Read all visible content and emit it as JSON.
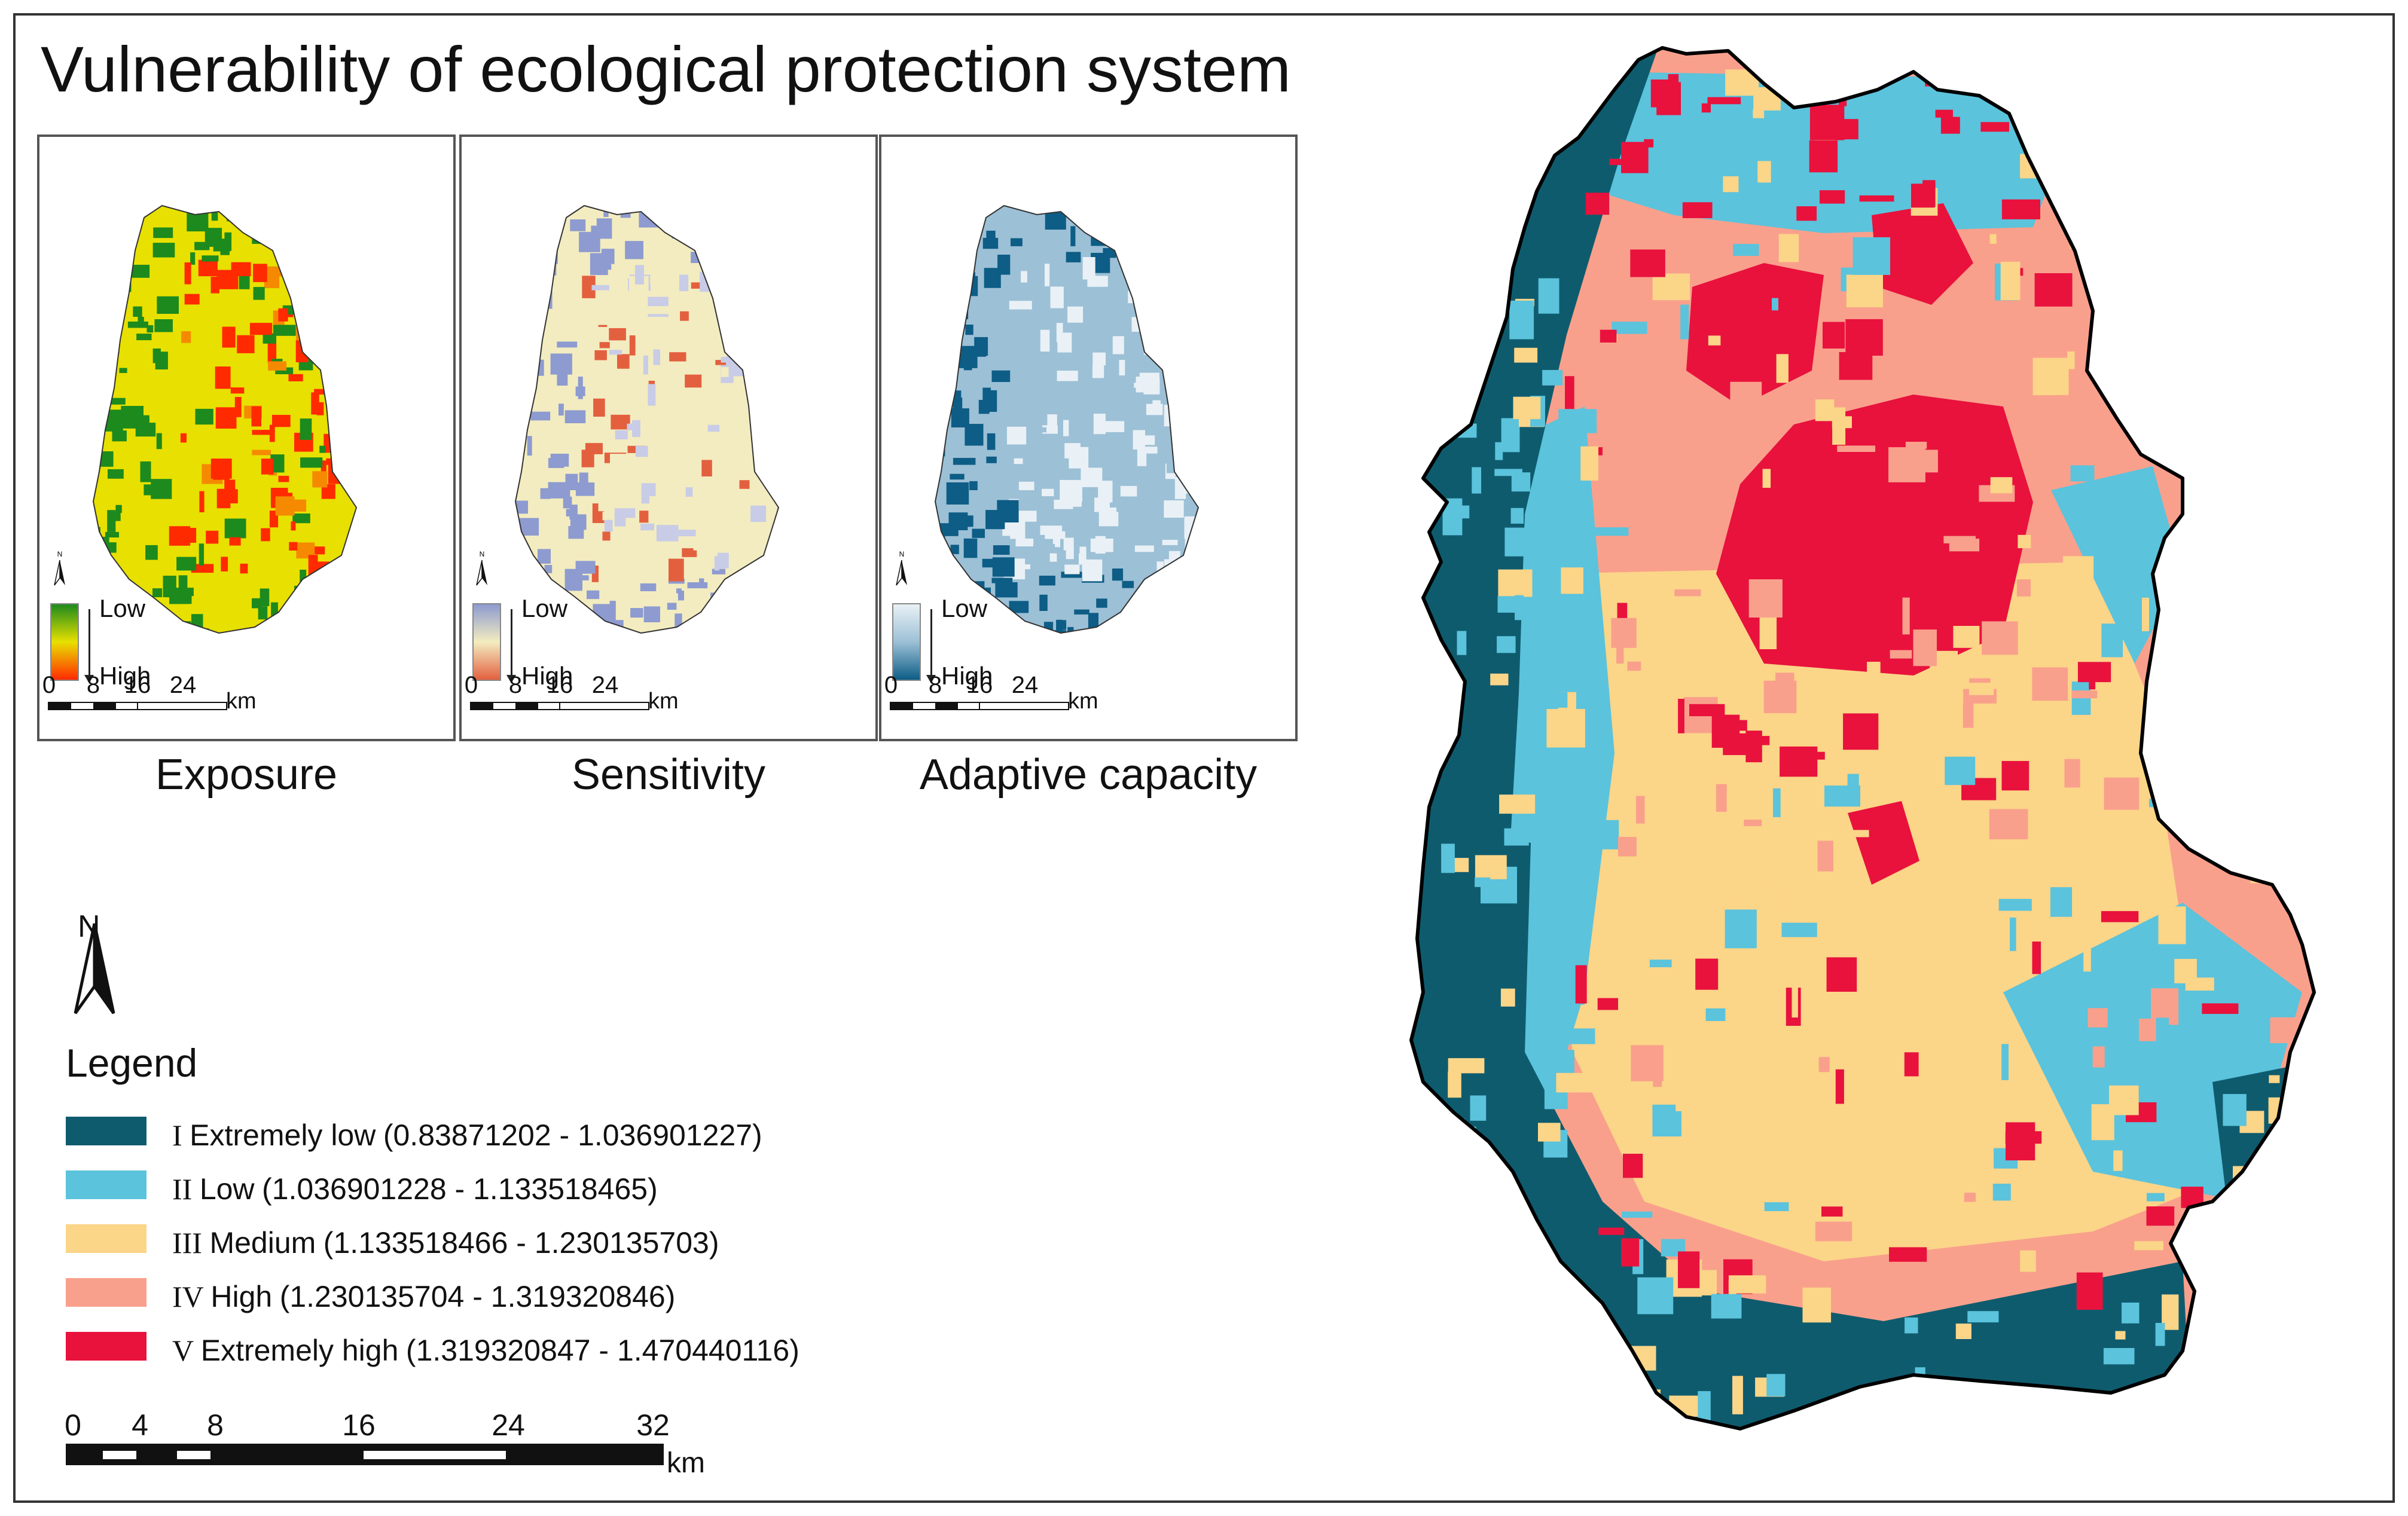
{
  "title": "Vulnerability of ecological protection system",
  "panels": [
    {
      "label": "Exposure",
      "ramp_low": "Low",
      "ramp_high": "High",
      "low_color": "#1d8a1d",
      "mid_color": "#e8e000",
      "high_color": "#ff2a00"
    },
    {
      "label": "Sensitivity",
      "ramp_low": "Low",
      "ramp_high": "High",
      "low_color": "#8d9bd0",
      "mid_color": "#f3ecc0",
      "high_color": "#e3603f"
    },
    {
      "label": "Adaptive capacity",
      "ramp_low": "Low",
      "ramp_high": "High",
      "low_color": "#e9f1f6",
      "mid_color": "#9cc0d6",
      "high_color": "#0d5d86"
    }
  ],
  "mini_scale": {
    "ticks": [
      "0",
      "8",
      "16",
      "24"
    ],
    "unit": "km"
  },
  "mini_north": "N",
  "legend": {
    "north": "N",
    "title": "Legend",
    "items": [
      {
        "class": "I",
        "name": "Extremely low",
        "range": "(0.83871202 - 1.036901227)",
        "color": "#0f5b6e"
      },
      {
        "class": "II",
        "name": "Low",
        "range": "(1.036901228 - 1.133518465)",
        "color": "#5bc3dc"
      },
      {
        "class": "III",
        "name": "Medium",
        "range": "(1.133518466 - 1.230135703)",
        "color": "#fbd588"
      },
      {
        "class": "IV",
        "name": "High",
        "range": "(1.230135704 - 1.319320846)",
        "color": "#f9a08c"
      },
      {
        "class": "V",
        "name": "Extremely high",
        "range": "(1.319320847 - 1.470440116)",
        "color": "#e8123d"
      }
    ]
  },
  "scale_bar": {
    "ticks": [
      "0",
      "4",
      "8",
      "16",
      "24",
      "32"
    ],
    "unit": "km"
  }
}
